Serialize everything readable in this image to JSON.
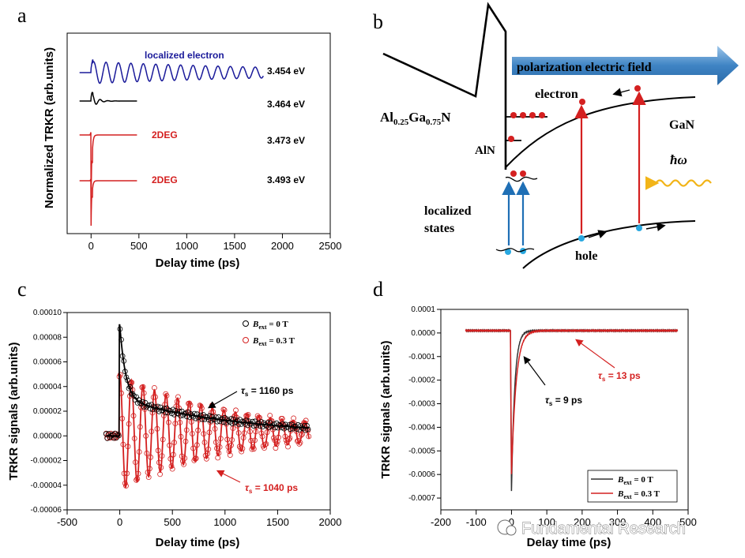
{
  "panel_labels": {
    "a": "a",
    "b": "b",
    "c": "c",
    "d": "d"
  },
  "chart_data": [
    {
      "id": "a",
      "type": "line",
      "xlabel": "Delay time (ps)",
      "ylabel": "Normalized TRKR (arb.units)",
      "xlim": [
        -250,
        2500
      ],
      "xticks": [
        0,
        500,
        1000,
        1500,
        2000,
        2500
      ],
      "series": [
        {
          "name": "localized electron",
          "energy": "3.454 eV",
          "color": "#1a1a9a",
          "t_end": 1800,
          "tau": 2500,
          "period": 130,
          "amp": 1.0
        },
        {
          "name": "",
          "energy": "3.464 eV",
          "color": "#000000",
          "t_end": 480,
          "tau": 55,
          "period": 80,
          "amp": 1.0
        },
        {
          "name": "2DEG",
          "energy": "3.473 eV",
          "color": "#d42020",
          "t_end": 480,
          "tau": 9,
          "period": 50,
          "amp": 1.0
        },
        {
          "name": "2DEG",
          "energy": "3.493 eV",
          "color": "#d42020",
          "t_end": 480,
          "tau": 9,
          "period": 50,
          "amp": 1.0
        }
      ]
    },
    {
      "id": "b",
      "type": "diagram",
      "labels": {
        "field": "polarization electric field",
        "electron": "electron",
        "algan_pre": "Al",
        "algan_s1": "0.25",
        "algan_mid": "Ga",
        "algan_s2": "0.75",
        "algan_post": "N",
        "aln": "AlN",
        "gan": "GaN",
        "hbar_omega": "ħω",
        "localized_1": "localized",
        "localized_2": "states",
        "hole": "hole"
      }
    },
    {
      "id": "c",
      "type": "scatter",
      "xlabel": "Delay time (ps)",
      "ylabel": "TRKR signals (arb.units)",
      "xlim": [
        -500,
        2000
      ],
      "xticks": [
        -500,
        0,
        500,
        1000,
        1500,
        2000
      ],
      "ylim": [
        -6e-05,
        0.0001
      ],
      "yticks": [
        {
          "v": 0.0001,
          "t": "0.00010"
        },
        {
          "v": 8e-05,
          "t": "0.00008"
        },
        {
          "v": 6e-05,
          "t": "0.00006"
        },
        {
          "v": 4e-05,
          "t": "0.00004"
        },
        {
          "v": 2e-05,
          "t": "0.00002"
        },
        {
          "v": 0,
          "t": "0.00000"
        },
        {
          "v": -2e-05,
          "t": "-0.00002"
        },
        {
          "v": -4e-05,
          "t": "-0.00004"
        },
        {
          "v": -6e-05,
          "t": "-0.00006"
        }
      ],
      "series": [
        {
          "name": "B",
          "sub": "ext",
          "rest": " = 0 T",
          "color": "#000000",
          "peak": 9e-05,
          "amp_fast": 6e-05,
          "tau_fast": 55,
          "amp_slow": 3e-05,
          "tau_slow": 1160
        },
        {
          "name": "B",
          "sub": "ext",
          "rest": " = 0.3 T",
          "color": "#d42020",
          "offset": 3e-06,
          "amp": 4.7e-05,
          "tau": 1040,
          "period": 110,
          "min": -4.5e-05
        }
      ],
      "annotations": [
        {
          "sym": "τ",
          "sub": "s",
          "value": " = 1160 ps",
          "color": "#000000"
        },
        {
          "sym": "τ",
          "sub": "s",
          "value": " = 1040 ps",
          "color": "#d42020"
        }
      ]
    },
    {
      "id": "d",
      "type": "line",
      "xlabel": "Delay time (ps)",
      "ylabel": "TRKR signals (arb.units)",
      "xlim": [
        -200,
        500
      ],
      "xticks": [
        -200,
        -100,
        0,
        100,
        200,
        300,
        400,
        500
      ],
      "ylim": [
        -0.00075,
        0.0001
      ],
      "yticks": [
        {
          "v": 0.0001,
          "t": "0.0001"
        },
        {
          "v": 0,
          "t": "0.0000"
        },
        {
          "v": -0.0001,
          "t": "-0.0001"
        },
        {
          "v": -0.0002,
          "t": "-0.0002"
        },
        {
          "v": -0.0003,
          "t": "-0.0003"
        },
        {
          "v": -0.0004,
          "t": "-0.0004"
        },
        {
          "v": -0.0005,
          "t": "-0.0005"
        },
        {
          "v": -0.0006,
          "t": "-0.0006"
        },
        {
          "v": -0.0007,
          "t": "-0.0007"
        }
      ],
      "baseline": 1e-05,
      "series": [
        {
          "name": "B",
          "sub": "ext",
          "rest": " = 0 T",
          "color": "#333333",
          "min": -0.00067,
          "tau": 9
        },
        {
          "name": "B",
          "sub": "ext",
          "rest": " = 0.3 T",
          "color": "#d42020",
          "min": -0.0006,
          "tau": 13
        }
      ],
      "annotations": [
        {
          "sym": "τ",
          "sub": "s",
          "value": " = 9 ps",
          "color": "#000000"
        },
        {
          "sym": "τ",
          "sub": "s",
          "value": " = 13 ps",
          "color": "#d42020"
        }
      ]
    }
  ],
  "watermark": "Fundamental Research"
}
